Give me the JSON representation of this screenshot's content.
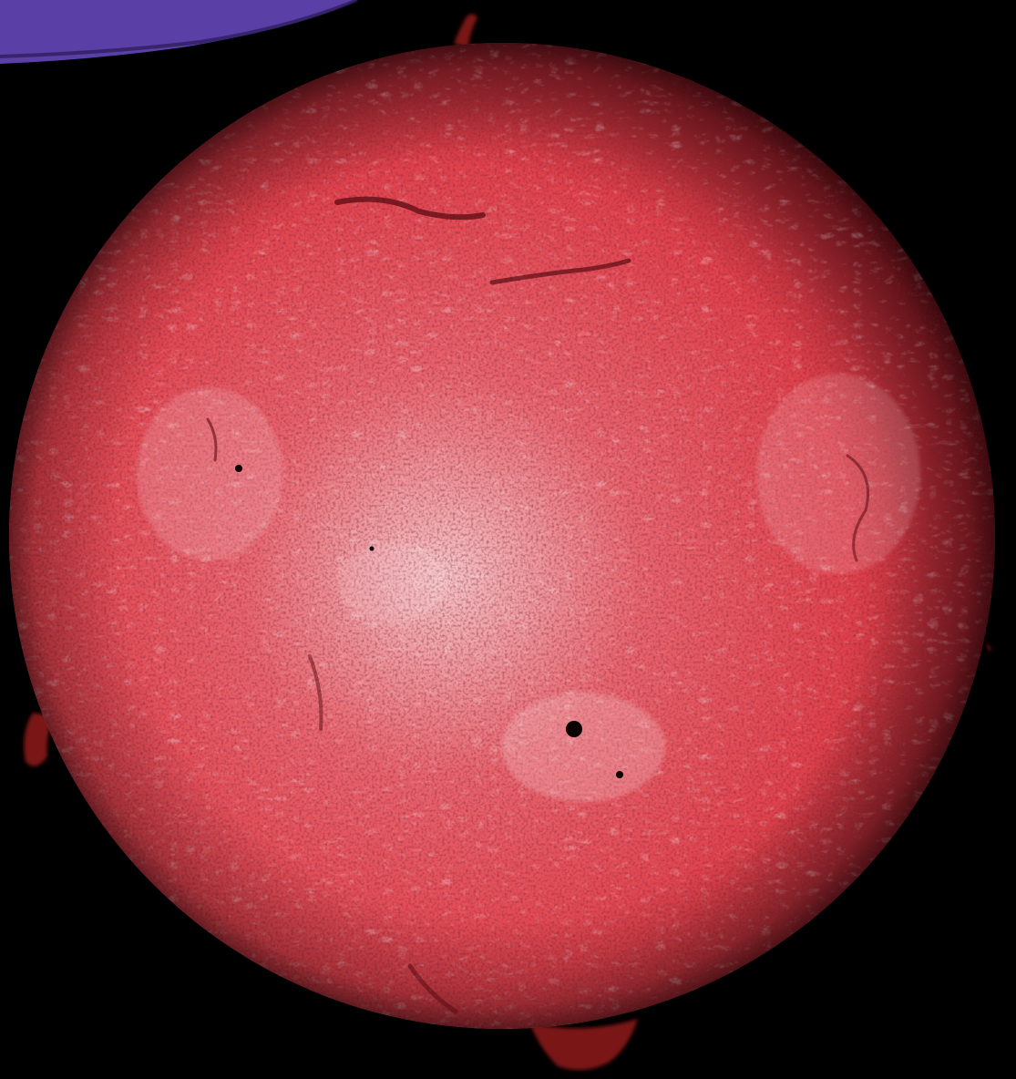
{
  "scene": {
    "background_color": "#000000",
    "disc_color_center": "#f3c4c6",
    "disc_color_mid": "#e0414a",
    "disc_color_limb": "#6e0f16",
    "corner_object_color": "#5a3fa6",
    "prominence_color": "#7a1218",
    "filament_color": "#5a0b12",
    "plage_color": "#fbe2e4",
    "sunspot_color": "#0a0000"
  }
}
